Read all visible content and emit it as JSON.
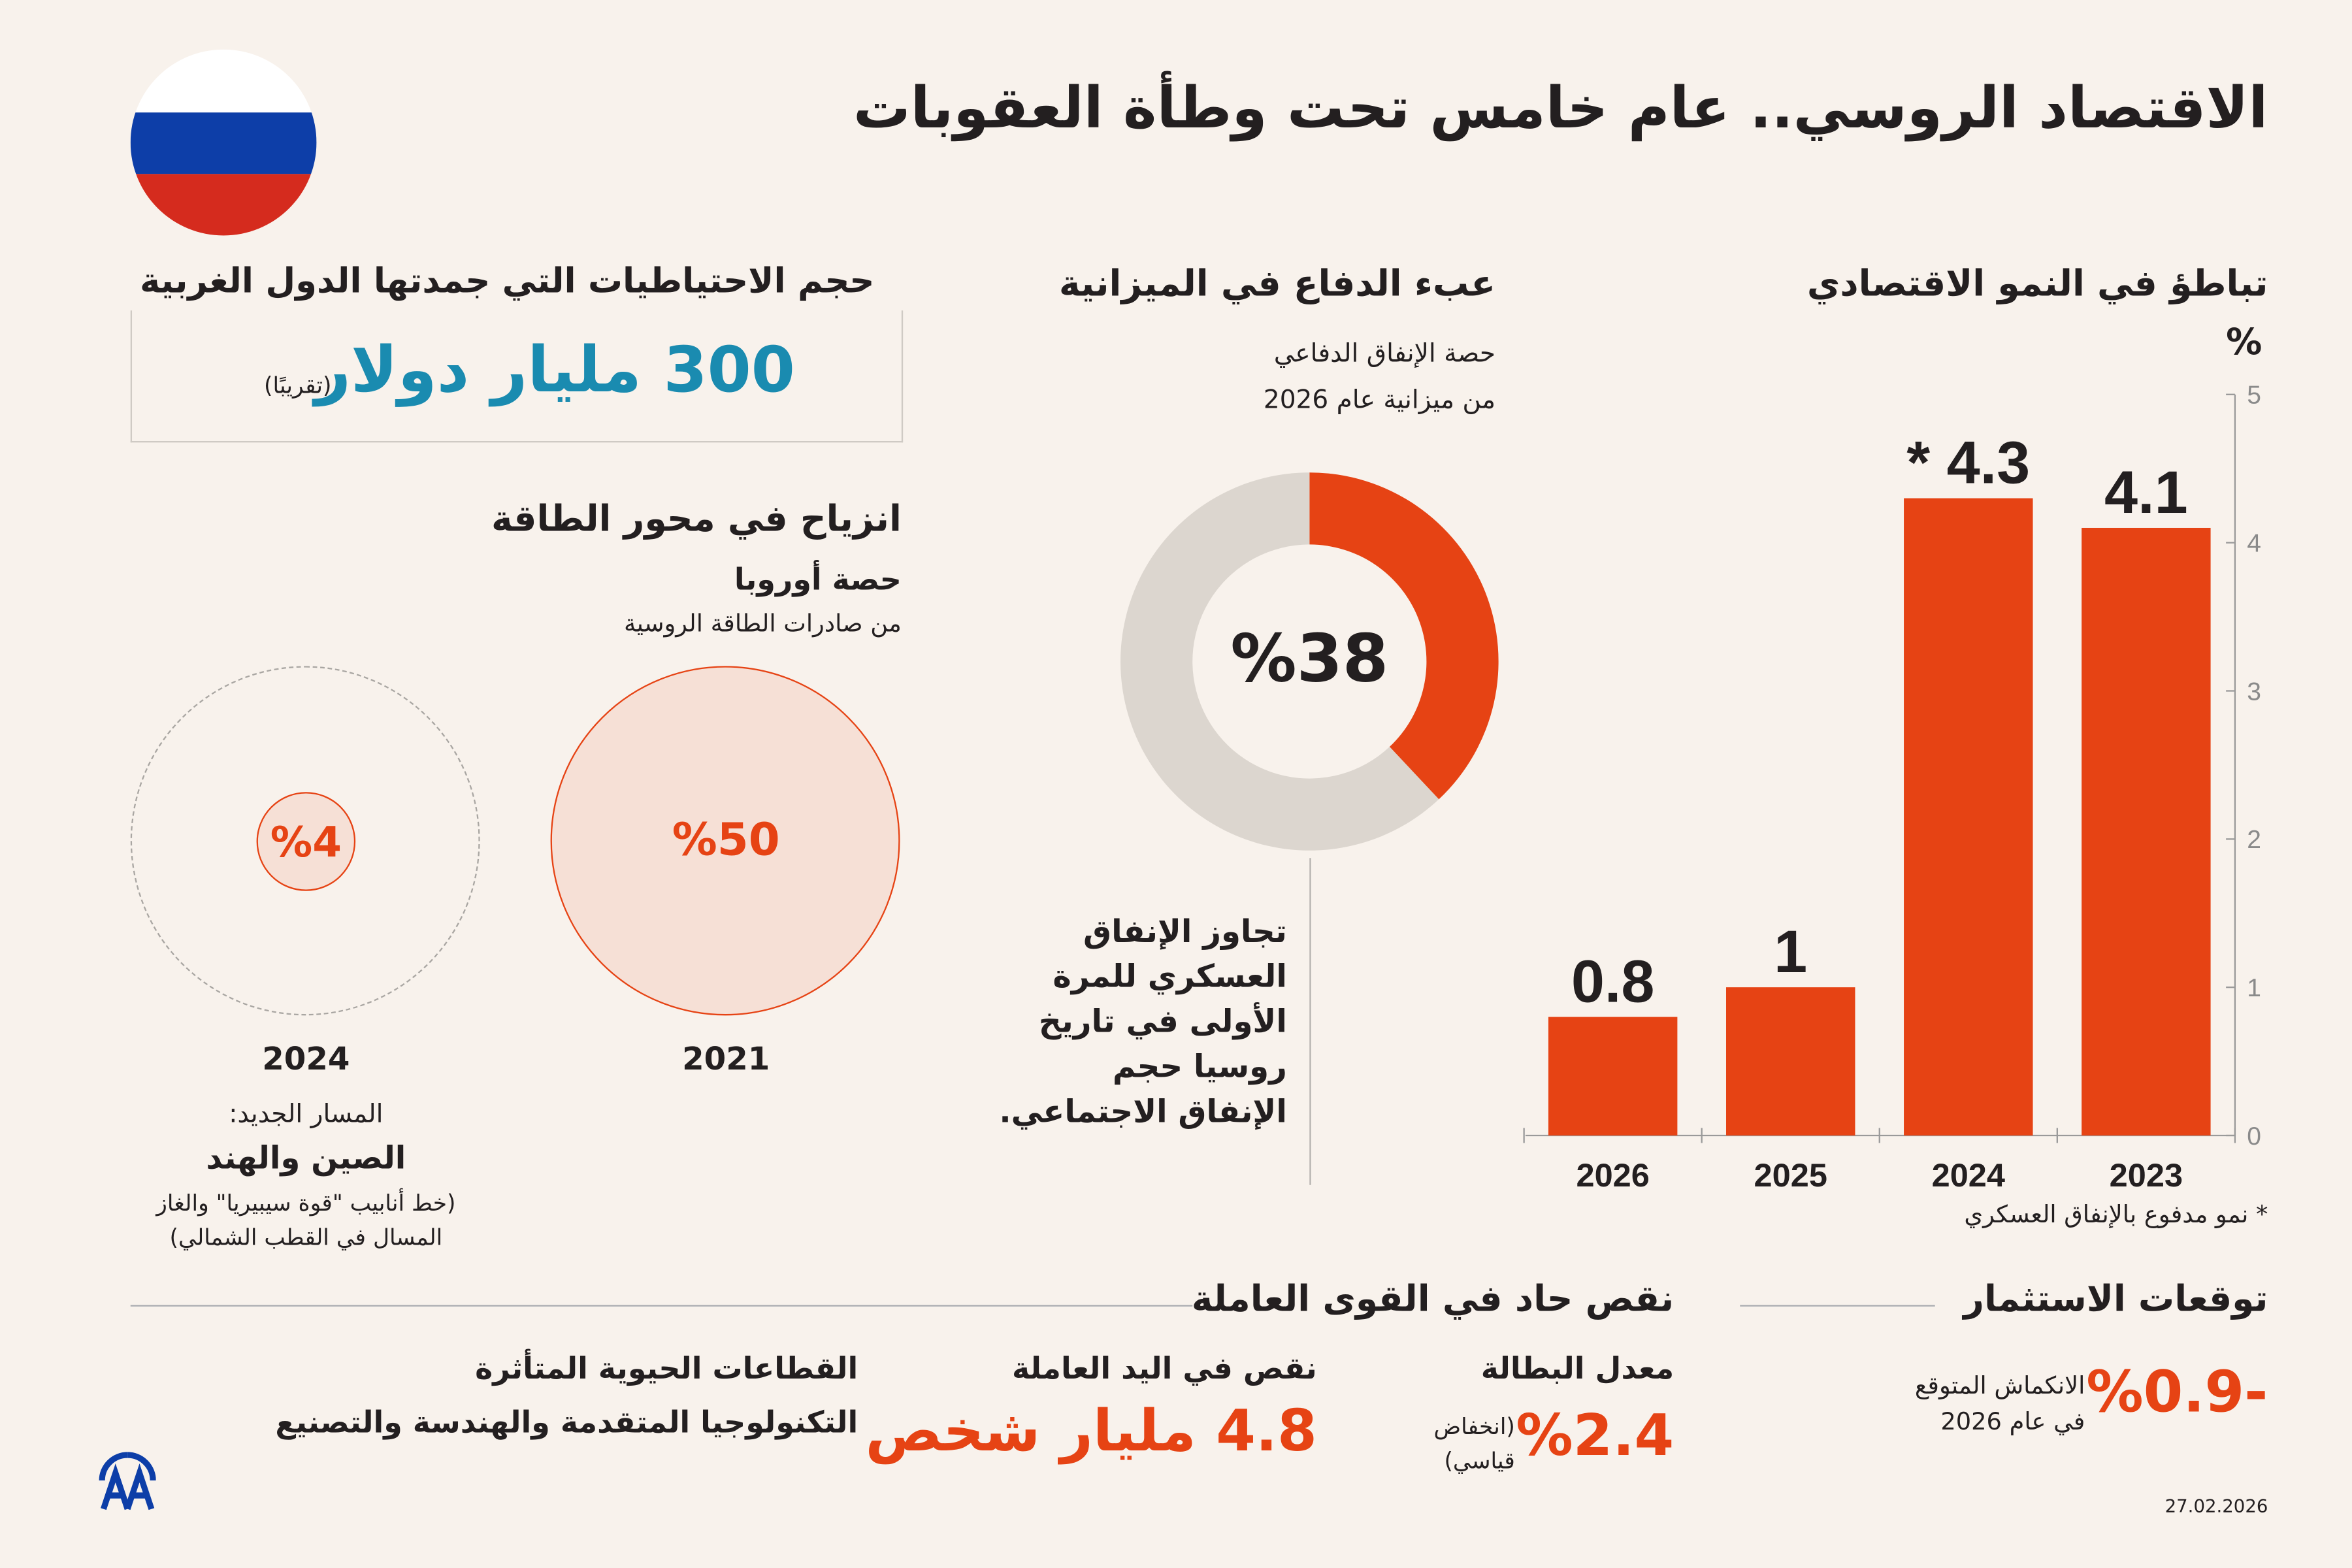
{
  "title": "الاقتصاد الروسي.. عام خامس تحت وطأة العقوبات",
  "colors": {
    "accent": "#e64314",
    "blue": "#1a8bb0",
    "grey": "#dcd6cf",
    "background": "#f8f2ec"
  },
  "growth": {
    "heading": "تباطؤ في النمو الاقتصادي",
    "unit": "%",
    "footnote": "* نمو مدفوع بالإنفاق العسكري"
  },
  "chart_data": [
    {
      "type": "bar",
      "title": "تباطؤ في النمو الاقتصادي",
      "ylabel": "%",
      "categories": [
        "2023",
        "2024",
        "2025",
        "2026"
      ],
      "values": [
        4.1,
        4.3,
        1,
        0.8
      ],
      "value_labels": [
        "4.1",
        "* 4.3",
        "1",
        "0.8"
      ],
      "ylim": [
        0,
        5
      ],
      "yticks": [
        "0",
        "1",
        "2",
        "3",
        "4",
        "5"
      ],
      "grid": false
    },
    {
      "type": "pie",
      "title": "عبء الدفاع في الميزانية",
      "categories": [
        "الإنفاق الدفاعي",
        "بقية الميزانية"
      ],
      "values": [
        38,
        62
      ],
      "center_label": "%38"
    }
  ],
  "defense": {
    "heading": "عبء الدفاع في الميزانية",
    "sub1": "حصة الإنفاق الدفاعي",
    "sub2": "من ميزانية عام 2026",
    "note": [
      "تجاوز الإنفاق",
      "العسكري للمرة",
      "الأولى في تاريخ",
      "روسيا حجم",
      "الإنفاق الاجتماعي."
    ]
  },
  "reserves": {
    "heading": "حجم الاحتياطيات التي جمدتها الدول الغربية",
    "value": "300 مليار دولار",
    "approx": "(تقريبًا)"
  },
  "energy": {
    "heading": "انزياح في محور الطاقة",
    "sub1": "حصة أوروبا",
    "sub2": "من صادرات الطاقة الروسية",
    "y2021": "2021",
    "v2021": "%50",
    "y2024": "2024",
    "v2024": "%4",
    "share_2021": 50,
    "share_2024": 4,
    "route_label": "المسار الجديد:",
    "route": "الصين والهند",
    "route_note1": "(خط أنابيب \"قوة سيبيريا\" والغاز",
    "route_note2": "المسال في القطب الشمالي)"
  },
  "investment": {
    "heading": "توقعات الاستثمار",
    "value": "%0.9-",
    "label1": "الانكماش المتوقع",
    "label2": "في عام 2026"
  },
  "labor": {
    "heading": "نقص حاد في القوى العاملة",
    "unemp_label": "معدل البطالة",
    "unemp_value": "%2.4",
    "unemp_note1": "(انخفاض",
    "unemp_note2": "قياسي)",
    "shortage_label": "نقص في اليد العاملة",
    "shortage_value": "4.8 مليار شخص",
    "sectors_label": "القطاعات الحيوية المتأثرة",
    "sectors_value": "التكنولوجيا المتقدمة والهندسة والتصنيع"
  },
  "logo": "AA",
  "date": "27.02.2026"
}
